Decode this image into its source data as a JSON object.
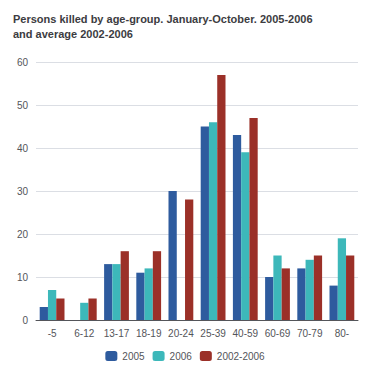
{
  "chart_data": {
    "type": "bar",
    "title": "Persons killed by age-group. January-October. 2005-2006\nand average 2002-2006",
    "categories": [
      "-5",
      "6-12",
      "13-17",
      "18-19",
      "20-24",
      "25-39",
      "40-59",
      "60-69",
      "70-79",
      "80-"
    ],
    "series": [
      {
        "name": "2005",
        "color": "#2e5b9e",
        "values": [
          3,
          0,
          13,
          11,
          30,
          45,
          43,
          10,
          12,
          8
        ]
      },
      {
        "name": "2006",
        "color": "#3db8ba",
        "values": [
          7,
          4,
          13,
          12,
          0,
          46,
          39,
          15,
          14,
          19
        ]
      },
      {
        "name": "2002-2006",
        "color": "#9b3028",
        "values": [
          5,
          5,
          16,
          16,
          28,
          57,
          47,
          12,
          15,
          15
        ]
      }
    ],
    "ylim": [
      0,
      60
    ],
    "yticks": [
      0,
      10,
      20,
      30,
      40,
      50,
      60
    ],
    "grid": true,
    "legend": "bottom"
  }
}
